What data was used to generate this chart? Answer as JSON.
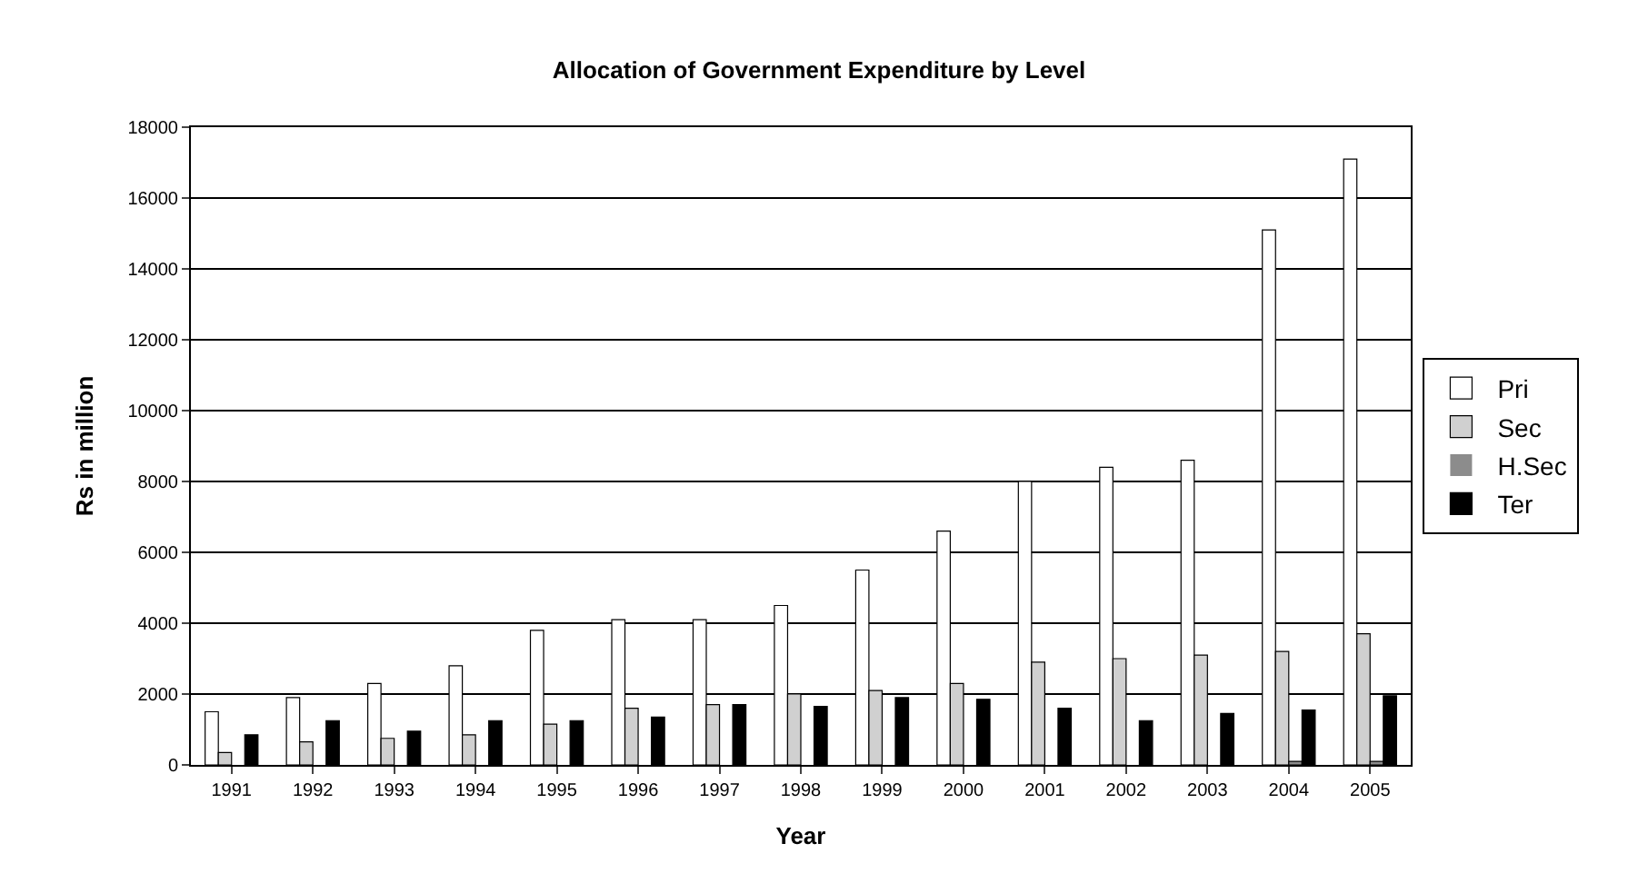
{
  "chart_data": {
    "type": "bar",
    "title": "Allocation of Government Expenditure by Level",
    "xlabel": "Year",
    "ylabel": "Rs in million",
    "categories": [
      "1991",
      "1992",
      "1993",
      "1994",
      "1995",
      "1996",
      "1997",
      "1998",
      "1999",
      "2000",
      "2001",
      "2002",
      "2003",
      "2004",
      "2005"
    ],
    "series": [
      {
        "name": "Pri",
        "color": "#ffffff",
        "values": [
          1500,
          1900,
          2300,
          2800,
          3800,
          4100,
          4100,
          4500,
          5500,
          6600,
          8000,
          8400,
          8600,
          15100,
          17100
        ]
      },
      {
        "name": "Sec",
        "color": "#d0d0d0",
        "values": [
          350,
          650,
          750,
          850,
          1150,
          1600,
          1700,
          2000,
          2100,
          2300,
          2900,
          3000,
          3100,
          3200,
          3700
        ]
      },
      {
        "name": "H.Sec",
        "color": "#8c8c8c",
        "values": [
          0,
          0,
          0,
          0,
          0,
          0,
          0,
          0,
          0,
          0,
          0,
          0,
          0,
          100,
          100
        ]
      },
      {
        "name": "Ter",
        "color": "#000000",
        "values": [
          850,
          1250,
          950,
          1250,
          1250,
          1350,
          1700,
          1650,
          1900,
          1850,
          1600,
          1250,
          1450,
          1550,
          1950
        ]
      }
    ],
    "ylim": [
      0,
      18000
    ],
    "yticks": [
      0,
      2000,
      4000,
      6000,
      8000,
      10000,
      12000,
      14000,
      16000,
      18000
    ],
    "grid": "y",
    "legend": "right"
  }
}
